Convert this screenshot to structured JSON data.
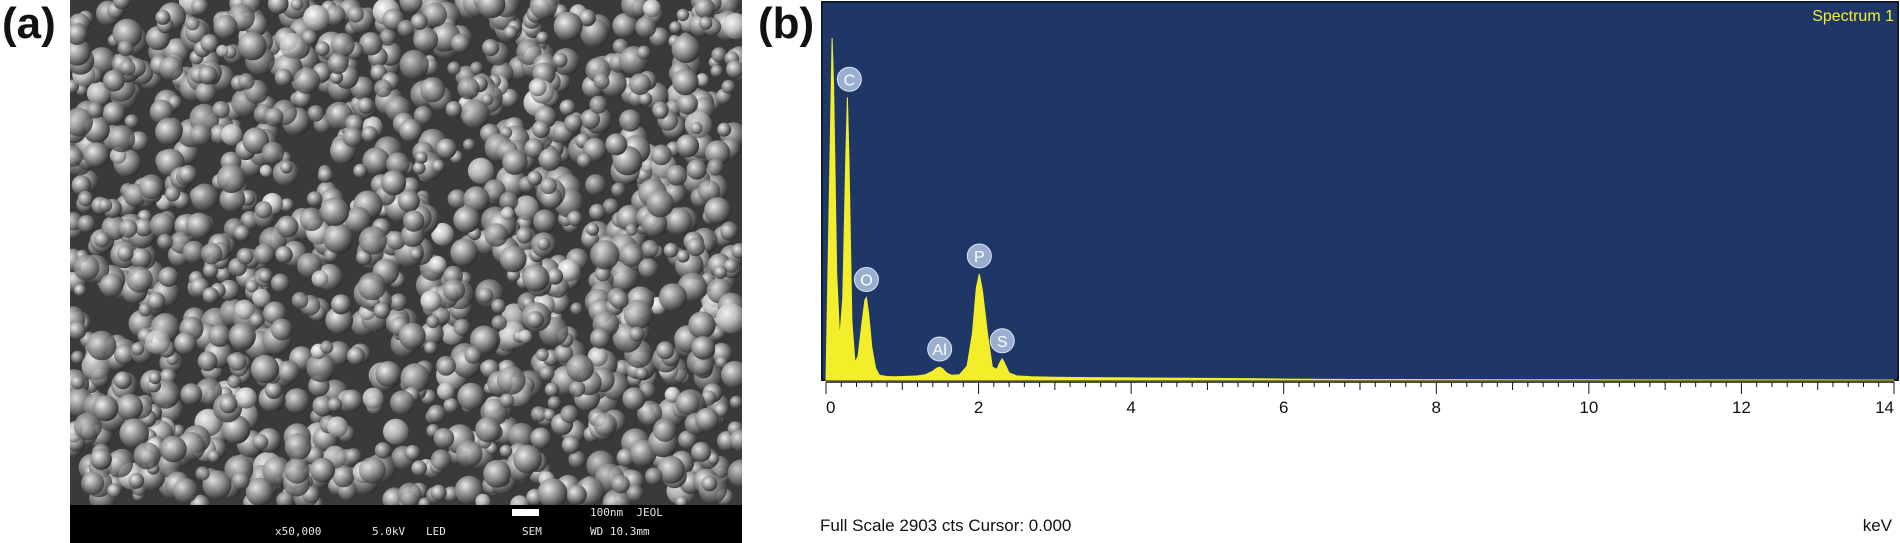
{
  "panels": {
    "a": {
      "label": "(a)"
    },
    "b": {
      "label": "(b)"
    }
  },
  "sem": {
    "scale_text": "100nm  JEOL",
    "magnification": "x50,000",
    "voltage": "5.0kV",
    "detector": "LED",
    "mode": "SEM",
    "working_distance": "WD 10.3mm",
    "image_description_icon": "sem-micrograph-icon"
  },
  "colors": {
    "plot_background": "#1e3766",
    "spectrum_fill": "#f2ee2a",
    "peak_marker": "#9aaed0",
    "title_color": "#f4ef3a"
  },
  "chart_data": {
    "type": "area",
    "title": "Spectrum 1",
    "xlabel": "keV",
    "ylabel": "",
    "xlim": [
      0,
      14
    ],
    "ylim": [
      0,
      2903
    ],
    "x_ticks": [
      0,
      2,
      4,
      6,
      8,
      10,
      12,
      14
    ],
    "grid": false,
    "legend": "none",
    "footer": "Full Scale 2903 cts Cursor: 0.000",
    "peaks": [
      {
        "element": "C",
        "energy": 0.28,
        "counts": 2400
      },
      {
        "element": "O",
        "energy": 0.53,
        "counts": 700
      },
      {
        "element": "Al",
        "energy": 1.49,
        "counts": 110
      },
      {
        "element": "P",
        "energy": 2.01,
        "counts": 900
      },
      {
        "element": "S",
        "energy": 2.31,
        "counts": 180
      }
    ],
    "spectrum": {
      "x": [
        0,
        0.05,
        0.08,
        0.1,
        0.14,
        0.18,
        0.22,
        0.26,
        0.28,
        0.3,
        0.34,
        0.38,
        0.42,
        0.47,
        0.51,
        0.53,
        0.56,
        0.6,
        0.65,
        0.7,
        0.8,
        0.9,
        1.0,
        1.1,
        1.2,
        1.3,
        1.4,
        1.45,
        1.49,
        1.53,
        1.58,
        1.65,
        1.75,
        1.85,
        1.92,
        1.97,
        2.01,
        2.05,
        2.12,
        2.18,
        2.24,
        2.28,
        2.31,
        2.34,
        2.4,
        2.5,
        2.7,
        3.0,
        3.5,
        4.0,
        4.5,
        5.0,
        5.5,
        6.0,
        7.0,
        8.0,
        9.0,
        10.0,
        11.0,
        12.0,
        13.0,
        14.0
      ],
      "y": [
        0,
        1800,
        2903,
        2500,
        900,
        350,
        700,
        1900,
        2400,
        1900,
        500,
        150,
        200,
        480,
        680,
        700,
        560,
        280,
        100,
        40,
        30,
        28,
        30,
        32,
        35,
        45,
        75,
        100,
        110,
        95,
        60,
        40,
        45,
        120,
        400,
        780,
        900,
        760,
        380,
        110,
        90,
        150,
        180,
        145,
        60,
        35,
        28,
        24,
        20,
        18,
        16,
        14,
        12,
        8,
        4,
        3,
        2,
        2,
        1,
        1,
        1,
        0
      ]
    }
  }
}
